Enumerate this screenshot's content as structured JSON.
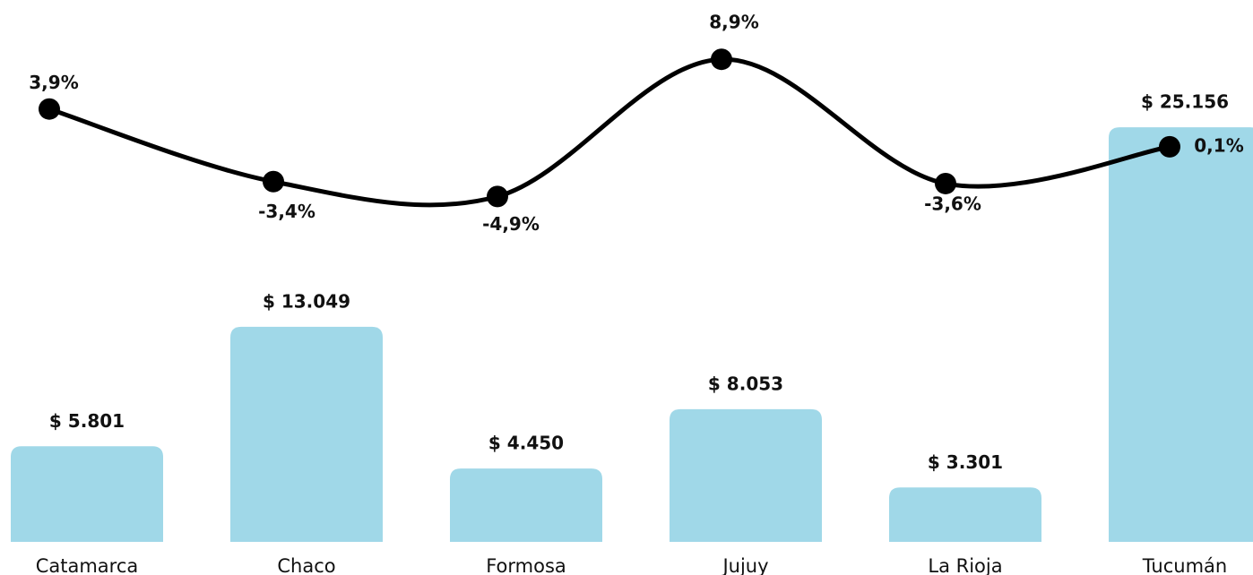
{
  "chart_data": {
    "type": "bar",
    "categories": [
      "Catamarca",
      "Chaco",
      "Formosa",
      "Jujuy",
      "La Rioja",
      "Tucumán"
    ],
    "ylim": [
      0,
      30000
    ],
    "y2lim": [
      -10,
      10
    ],
    "series": [
      {
        "type": "bar",
        "color": "#a0d8e8",
        "values": [
          5801,
          13049,
          4450,
          8053,
          3301,
          25156
        ],
        "value_labels": [
          "$ 5.801",
          "$ 13.049",
          "$ 4.450",
          "$ 8.053",
          "$ 3.301",
          "$ 25.156"
        ]
      },
      {
        "type": "line",
        "axis": "y2",
        "color": "#000000",
        "values": [
          3.9,
          -3.4,
          -4.9,
          8.9,
          -3.6,
          0.1
        ],
        "value_labels": [
          "3,9%",
          "-3,4%",
          "-4,9%",
          "8,9%",
          "-3,6%",
          "0,1%"
        ]
      }
    ]
  }
}
